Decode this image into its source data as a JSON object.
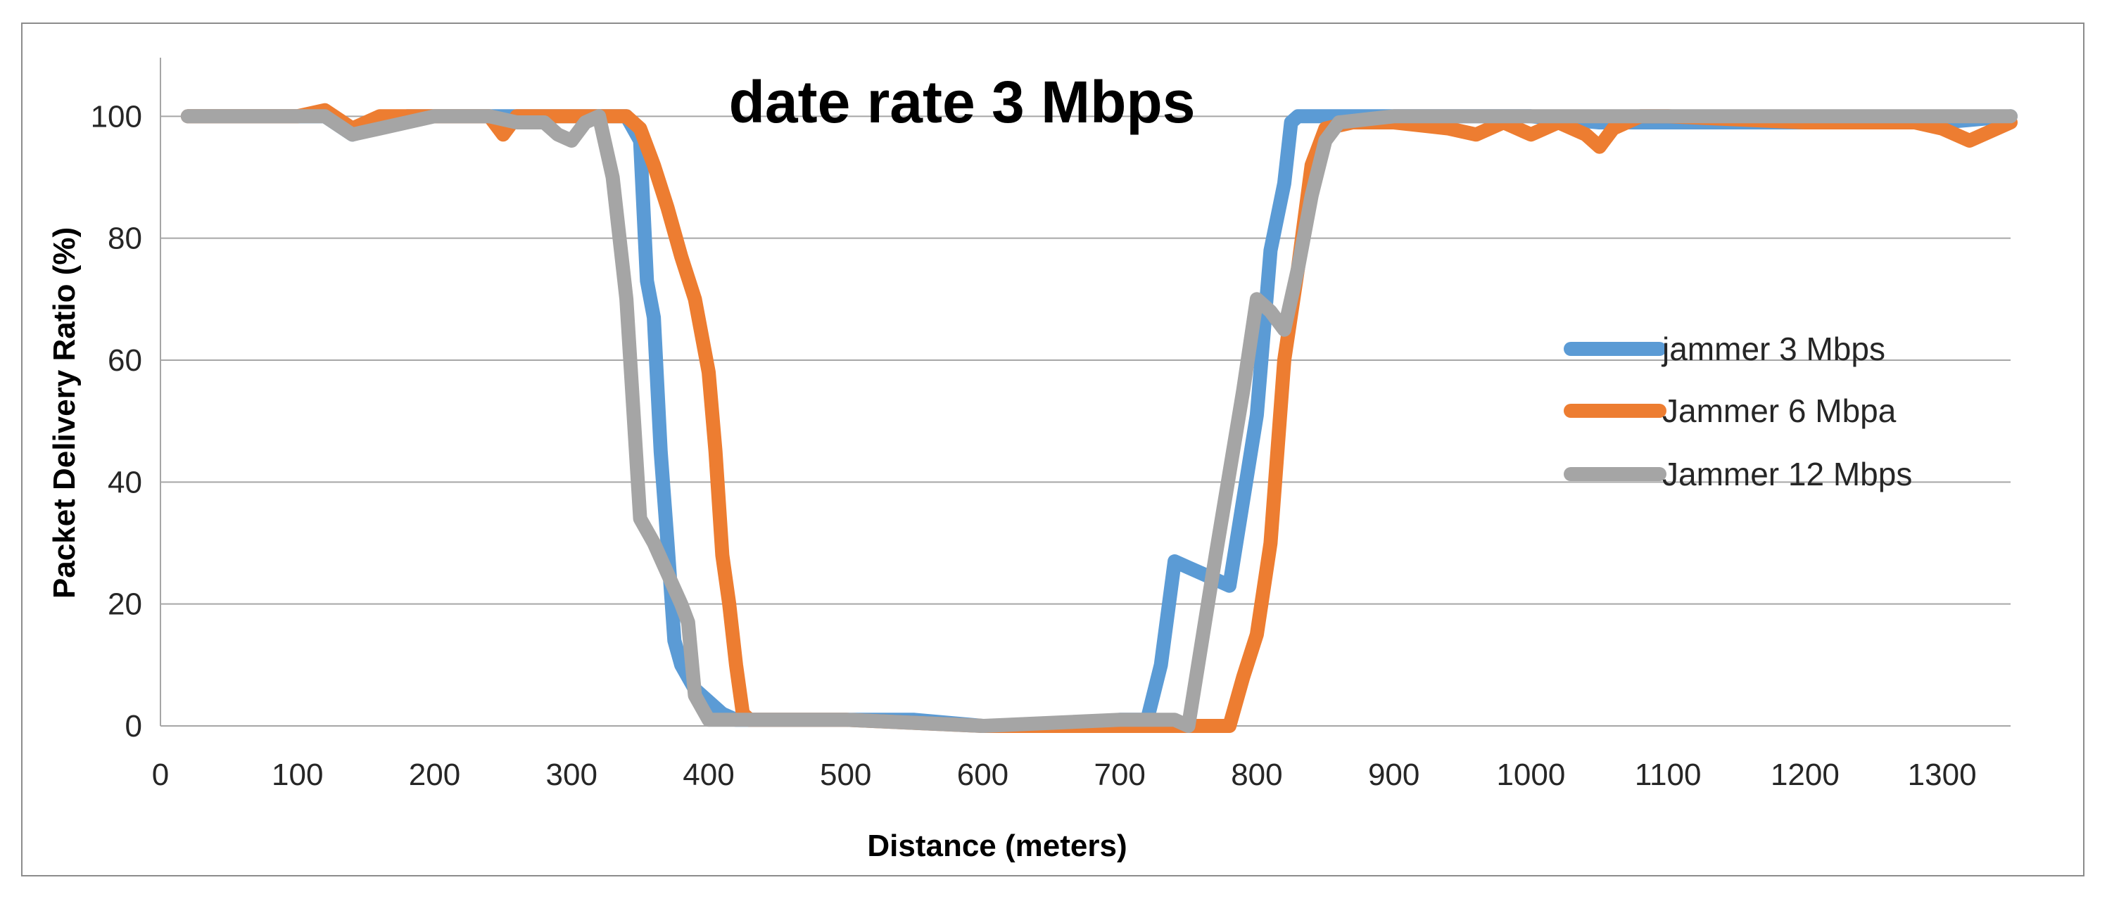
{
  "chart_data": {
    "type": "line",
    "title": "date rate 3 Mbps",
    "xlabel": "Distance (meters)",
    "ylabel": "Packet Delivery Ratio (%)",
    "xlim": [
      0,
      1350
    ],
    "ylim": [
      0,
      105
    ],
    "x_ticks": [
      0,
      100,
      200,
      300,
      400,
      500,
      600,
      700,
      800,
      900,
      1000,
      1100,
      1200,
      1300
    ],
    "y_ticks": [
      0,
      20,
      40,
      60,
      80,
      100
    ],
    "grid": "horizontal",
    "legend_position": "right",
    "series": [
      {
        "name": "jammer 3 Mbps",
        "color": "#5B9BD5",
        "x": [
          20,
          40,
          60,
          80,
          100,
          120,
          140,
          160,
          180,
          200,
          220,
          240,
          260,
          280,
          300,
          320,
          340,
          350,
          355,
          360,
          365,
          370,
          375,
          380,
          390,
          400,
          410,
          420,
          450,
          500,
          550,
          600,
          650,
          700,
          720,
          730,
          740,
          750,
          760,
          780,
          800,
          810,
          820,
          825,
          830,
          850,
          900,
          950,
          1000,
          1050,
          1100,
          1150,
          1200,
          1250,
          1300,
          1350
        ],
        "y": [
          100,
          100,
          100,
          100,
          100,
          100,
          97,
          99,
          100,
          100,
          100,
          100,
          100,
          100,
          100,
          100,
          100,
          96,
          73,
          67,
          45,
          30,
          14,
          10,
          6,
          4,
          2,
          1,
          1,
          1,
          1,
          0,
          0,
          1,
          1,
          10,
          27,
          26,
          25,
          23,
          51,
          78,
          89,
          99,
          100,
          100,
          100,
          100,
          100,
          99,
          99,
          99,
          99,
          99,
          99,
          100
        ]
      },
      {
        "name": "Jammer 6 Mbpa",
        "color": "#ED7D31",
        "x": [
          20,
          40,
          60,
          80,
          100,
          120,
          140,
          160,
          180,
          200,
          220,
          240,
          250,
          260,
          280,
          300,
          320,
          340,
          350,
          360,
          370,
          380,
          390,
          400,
          405,
          410,
          415,
          420,
          425,
          430,
          450,
          500,
          600,
          700,
          760,
          780,
          790,
          800,
          810,
          820,
          830,
          840,
          850,
          870,
          900,
          940,
          960,
          980,
          1000,
          1020,
          1040,
          1050,
          1060,
          1080,
          1100,
          1200,
          1280,
          1300,
          1320,
          1350
        ],
        "y": [
          100,
          100,
          100,
          100,
          100,
          101,
          98,
          100,
          100,
          100,
          100,
          100,
          97,
          100,
          100,
          100,
          100,
          100,
          98,
          92,
          85,
          77,
          70,
          58,
          45,
          28,
          20,
          10,
          2,
          1,
          1,
          1,
          0,
          0,
          0,
          0,
          8,
          15,
          30,
          60,
          75,
          92,
          98,
          99,
          99,
          98,
          97,
          99,
          97,
          99,
          97,
          95,
          98,
          100,
          100,
          99,
          99,
          98,
          96,
          99
        ]
      },
      {
        "name": "Jammer 12 Mbps",
        "color": "#A5A5A5",
        "x": [
          20,
          40,
          60,
          80,
          100,
          120,
          140,
          160,
          180,
          200,
          220,
          240,
          260,
          280,
          290,
          300,
          310,
          320,
          330,
          340,
          350,
          360,
          370,
          380,
          385,
          390,
          395,
          400,
          410,
          450,
          500,
          600,
          700,
          740,
          750,
          770,
          790,
          800,
          810,
          820,
          830,
          840,
          850,
          860,
          900,
          1000,
          1100,
          1200,
          1250,
          1300,
          1350
        ],
        "y": [
          100,
          100,
          100,
          100,
          100,
          100,
          97,
          98,
          99,
          100,
          100,
          100,
          99,
          99,
          97,
          96,
          99,
          100,
          90,
          70,
          34,
          30,
          25,
          20,
          17,
          5,
          3,
          1,
          1,
          1,
          1,
          0,
          1,
          1,
          0,
          28,
          55,
          70,
          68,
          65,
          75,
          87,
          96,
          99,
          100,
          100,
          100,
          100,
          100,
          100,
          100
        ]
      }
    ]
  }
}
